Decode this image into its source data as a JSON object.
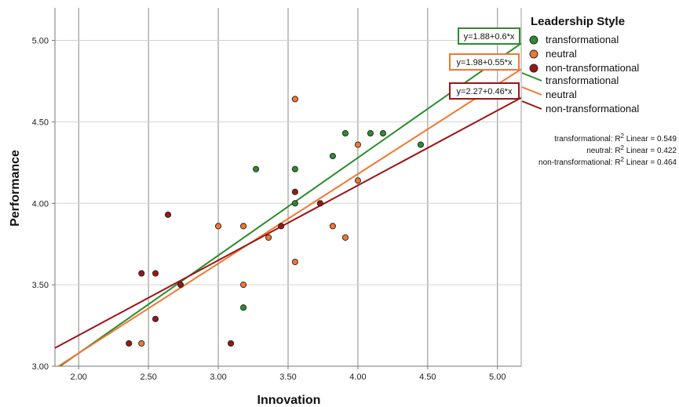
{
  "chart_data": {
    "type": "scatter",
    "title": "",
    "xlabel": "Innovation",
    "ylabel": "Performance",
    "xlim": [
      1.83,
      5.17
    ],
    "ylim": [
      3.0,
      5.2
    ],
    "x_ticks": [
      "2.00",
      "2.50",
      "3.00",
      "3.50",
      "4.00",
      "4.50",
      "5.00"
    ],
    "y_ticks": [
      "3.00",
      "3.50",
      "4.00",
      "4.50",
      "5.00"
    ],
    "grid": "vertical",
    "legend": {
      "title": "Leadership Style",
      "placement": "right",
      "marker_labels": [
        "transformational",
        "neutral",
        "non-transformational"
      ],
      "line_labels": [
        "transformational",
        "neutral",
        "non-transformational"
      ]
    },
    "series": [
      {
        "name": "transformational",
        "color": "#2e8b2e",
        "equation": "y=1.88+0.6*x",
        "intercept": 1.88,
        "slope": 0.6,
        "r2_pre": "transformational: R",
        "r2_post": " Linear = 0.549",
        "points": [
          [
            3.27,
            4.21
          ],
          [
            3.55,
            4.21
          ],
          [
            3.55,
            4.0
          ],
          [
            3.82,
            4.29
          ],
          [
            3.91,
            4.43
          ],
          [
            4.09,
            4.43
          ],
          [
            4.18,
            4.43
          ],
          [
            4.45,
            4.36
          ],
          [
            3.18,
            3.36
          ]
        ]
      },
      {
        "name": "neutral",
        "color": "#f07830",
        "equation": "y=1.98+0.55*x",
        "intercept": 1.98,
        "slope": 0.55,
        "r2_pre": "neutral: R",
        "r2_post": " Linear = 0.422",
        "points": [
          [
            3.55,
            4.64
          ],
          [
            4.0,
            4.36
          ],
          [
            4.0,
            4.14
          ],
          [
            3.0,
            3.86
          ],
          [
            3.18,
            3.86
          ],
          [
            3.36,
            3.79
          ],
          [
            3.82,
            3.86
          ],
          [
            3.91,
            3.79
          ],
          [
            3.55,
            3.64
          ],
          [
            3.18,
            3.5
          ],
          [
            2.45,
            3.14
          ]
        ]
      },
      {
        "name": "non-transformational",
        "color": "#9b1515",
        "equation": "y=2.27+0.46*x",
        "intercept": 2.27,
        "slope": 0.46,
        "r2_pre": "non-transformational: R",
        "r2_post": " Linear = 0.464",
        "points": [
          [
            2.64,
            3.93
          ],
          [
            2.45,
            3.57
          ],
          [
            2.55,
            3.57
          ],
          [
            2.73,
            3.5
          ],
          [
            2.55,
            3.29
          ],
          [
            2.36,
            3.14
          ],
          [
            3.09,
            3.14
          ],
          [
            3.45,
            3.86
          ],
          [
            3.55,
            4.07
          ],
          [
            3.73,
            4.0
          ]
        ]
      }
    ]
  }
}
